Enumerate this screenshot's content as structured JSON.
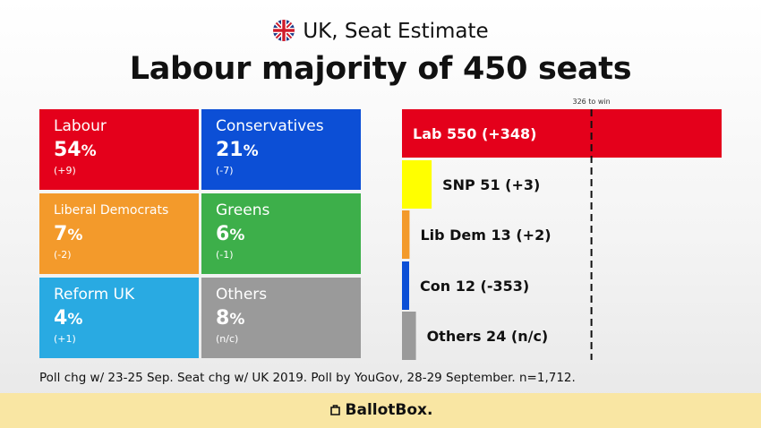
{
  "header": {
    "subtitle": "UK, Seat Estimate",
    "title": "Labour majority of 450 seats"
  },
  "vote_tiles": [
    {
      "name": "Labour",
      "pct": "54",
      "chg": "(+9)",
      "color": "#e4001b"
    },
    {
      "name": "Conservatives",
      "pct": "21",
      "chg": "(-7)",
      "color": "#0c4fd6"
    },
    {
      "name": "Liberal Democrats",
      "pct": "7",
      "chg": "(-2)",
      "color": "#f39a2b"
    },
    {
      "name": "Greens",
      "pct": "6",
      "chg": "(-1)",
      "color": "#3daf4a"
    },
    {
      "name": "Reform UK",
      "pct": "4",
      "chg": "(+1)",
      "color": "#29aae2"
    },
    {
      "name": "Others",
      "pct": "8",
      "chg": "(n/c)",
      "color": "#9a9a9a"
    }
  ],
  "percent_sign": "%",
  "chart_data": {
    "type": "bar",
    "orientation": "horizontal",
    "categories": [
      "Lab",
      "SNP",
      "Lib Dem",
      "Con",
      "Others"
    ],
    "values": [
      550,
      51,
      13,
      12,
      24
    ],
    "changes": [
      "+348",
      "+3",
      "+2",
      "-353",
      "n/c"
    ],
    "bar_labels": [
      "Lab  550 (+348)",
      "SNP  51 (+3)",
      "Lib Dem  13 (+2)",
      "Con  12 (-353)",
      "Others  24 (n/c)"
    ],
    "colors": [
      "#e4001b",
      "#ffff00",
      "#f39a2b",
      "#0c4fd6",
      "#9a9a9a"
    ],
    "threshold": {
      "value": 326,
      "label": "326 to win"
    },
    "xlim": [
      0,
      550
    ]
  },
  "footnote": "Poll chg w/ 23-25 Sep. Seat chg w/ UK 2019. Poll by YouGov, 28-29 September. n=1,712.",
  "brand": "BallotBox."
}
